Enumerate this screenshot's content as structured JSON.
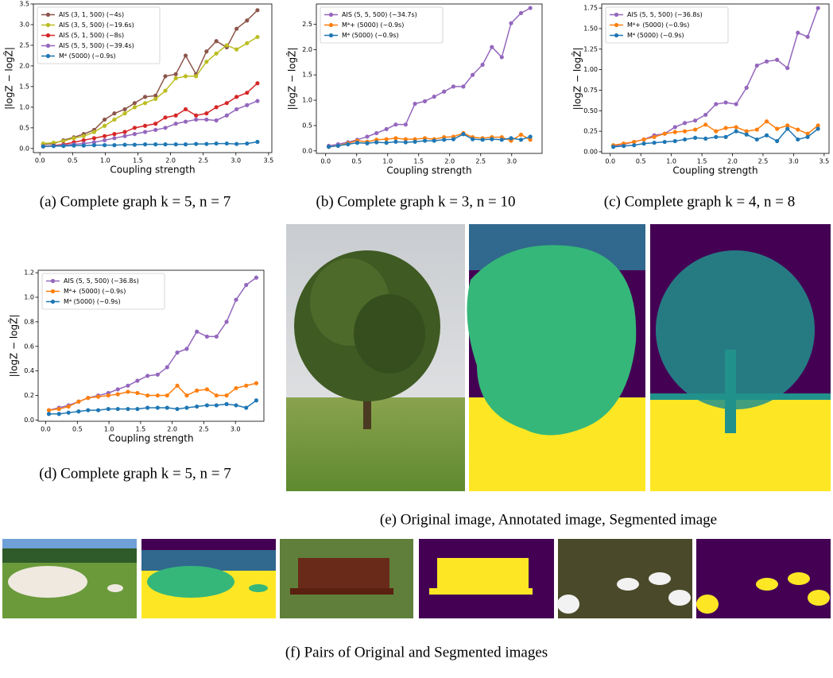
{
  "chart_data": [
    {
      "type": "line",
      "caption": "(a) Complete graph k = 5, n = 7",
      "x_label": "Coupling strength",
      "y_label": "|logZ − logẐ|",
      "x": [
        0.05,
        0.21,
        0.36,
        0.52,
        0.67,
        0.83,
        0.99,
        1.14,
        1.3,
        1.45,
        1.61,
        1.77,
        1.92,
        2.08,
        2.23,
        2.39,
        2.55,
        2.7,
        2.86,
        3.01,
        3.17,
        3.33
      ],
      "xlim": [
        -0.1,
        3.55
      ],
      "xticks": [
        {
          "value": 0,
          "label": "0.0"
        },
        0.5,
        {
          "value": 1,
          "label": "1.0"
        },
        1.5,
        {
          "value": 2,
          "label": "2.0"
        },
        2.5,
        {
          "value": 3,
          "label": "3.0"
        },
        3.5
      ],
      "ylim": [
        -0.1,
        3.5
      ],
      "yticks": [
        {
          "value": 0,
          "label": "0.0"
        },
        0.5,
        {
          "value": 1,
          "label": "1.0"
        },
        1.5,
        {
          "value": 2,
          "label": "2.0"
        },
        2.5,
        {
          "value": 3,
          "label": "3.0"
        },
        3.5
      ],
      "legend": "upper left",
      "series": [
        {
          "name": "AIS (3, 1, 500) (~4s)",
          "color": "#8c564b",
          "values": [
            0.1,
            0.12,
            0.2,
            0.27,
            0.35,
            0.45,
            0.7,
            0.85,
            0.95,
            1.1,
            1.25,
            1.28,
            1.75,
            1.8,
            2.25,
            1.8,
            2.35,
            2.6,
            2.45,
            2.9,
            3.1,
            3.35
          ]
        },
        {
          "name": "AIS (3, 5, 500) (~19.6s)",
          "color": "#bcbd22",
          "values": [
            0.12,
            0.14,
            0.18,
            0.25,
            0.3,
            0.4,
            0.55,
            0.7,
            0.85,
            1.0,
            1.1,
            1.2,
            1.4,
            1.7,
            1.75,
            1.75,
            2.1,
            2.3,
            2.5,
            2.4,
            2.55,
            2.7
          ]
        },
        {
          "name": "AIS (5, 1, 500) (~8s)",
          "color": "#d62728",
          "values": [
            0.05,
            0.07,
            0.1,
            0.15,
            0.2,
            0.25,
            0.3,
            0.35,
            0.4,
            0.5,
            0.55,
            0.6,
            0.75,
            0.8,
            0.95,
            0.8,
            0.85,
            1.0,
            1.1,
            1.25,
            1.35,
            1.58
          ]
        },
        {
          "name": "AIS (5, 5, 500) (~39.4s)",
          "color": "#9467bd",
          "values": [
            0.05,
            0.06,
            0.08,
            0.1,
            0.12,
            0.15,
            0.2,
            0.25,
            0.3,
            0.35,
            0.4,
            0.45,
            0.5,
            0.6,
            0.65,
            0.7,
            0.7,
            0.68,
            0.8,
            0.95,
            1.05,
            1.15
          ]
        },
        {
          "name": "M⁴ (5000) (~0.9s)",
          "color": "#1f77b4",
          "values": [
            0.05,
            0.06,
            0.06,
            0.07,
            0.07,
            0.08,
            0.08,
            0.08,
            0.09,
            0.09,
            0.1,
            0.1,
            0.1,
            0.1,
            0.1,
            0.11,
            0.11,
            0.12,
            0.12,
            0.11,
            0.12,
            0.16
          ]
        }
      ]
    },
    {
      "type": "line",
      "caption": "(b) Complete graph k = 3, n = 10",
      "x_label": "Coupling strength",
      "y_label": "|logZ − logẐ|",
      "x": [
        0.05,
        0.2,
        0.36,
        0.51,
        0.67,
        0.82,
        0.98,
        1.13,
        1.29,
        1.44,
        1.6,
        1.75,
        1.91,
        2.06,
        2.22,
        2.37,
        2.53,
        2.68,
        2.84,
        2.99,
        3.15,
        3.3
      ],
      "xlim": [
        -0.15,
        3.49
      ],
      "xticks": [
        {
          "value": 0,
          "label": "0.0"
        },
        0.5,
        {
          "value": 1,
          "label": "1.0"
        },
        1.5,
        {
          "value": 2,
          "label": "2.0"
        },
        2.5,
        {
          "value": 3,
          "label": "3.0"
        }
      ],
      "ylim": [
        -0.05,
        2.9
      ],
      "yticks": [
        {
          "value": 0,
          "label": "0.0"
        },
        0.5,
        {
          "value": 1,
          "label": "1.0"
        },
        1.5,
        {
          "value": 2,
          "label": "2.0"
        },
        2.5
      ],
      "legend": "upper left",
      "series": [
        {
          "name": "AIS (5, 5, 500) (~34.7s)",
          "color": "#9467bd",
          "values": [
            0.1,
            0.13,
            0.17,
            0.22,
            0.28,
            0.35,
            0.43,
            0.52,
            0.52,
            0.93,
            0.98,
            1.07,
            1.17,
            1.27,
            1.27,
            1.5,
            1.7,
            2.05,
            1.85,
            2.52,
            2.72,
            2.82
          ]
        },
        {
          "name": "M⁴+ (5000) (~0.9s)",
          "color": "#ff7f0e",
          "values": [
            0.08,
            0.1,
            0.15,
            0.2,
            0.18,
            0.22,
            0.23,
            0.25,
            0.23,
            0.23,
            0.25,
            0.23,
            0.27,
            0.28,
            0.35,
            0.27,
            0.25,
            0.27,
            0.27,
            0.2,
            0.32,
            0.22
          ]
        },
        {
          "name": "M⁴ (5000) (~0.9s)",
          "color": "#1f77b4",
          "values": [
            0.08,
            0.1,
            0.13,
            0.16,
            0.15,
            0.17,
            0.16,
            0.18,
            0.17,
            0.18,
            0.2,
            0.2,
            0.22,
            0.23,
            0.33,
            0.23,
            0.22,
            0.23,
            0.22,
            0.25,
            0.22,
            0.28
          ]
        }
      ]
    },
    {
      "type": "line",
      "caption": "(c) Complete graph k = 4, n = 8",
      "x_label": "Coupling strength",
      "y_label": "|logZ − logẐ|",
      "x": [
        0.05,
        0.22,
        0.39,
        0.55,
        0.72,
        0.89,
        1.06,
        1.22,
        1.39,
        1.56,
        1.73,
        1.89,
        2.06,
        2.23,
        2.4,
        2.56,
        2.73,
        2.9,
        3.07,
        3.23,
        3.4
      ],
      "xlim": [
        -0.14,
        3.58
      ],
      "xticks": [
        {
          "value": 0,
          "label": "0.0"
        },
        0.5,
        {
          "value": 1,
          "label": "1.0"
        },
        1.5,
        {
          "value": 2,
          "label": "2.0"
        },
        2.5,
        {
          "value": 3,
          "label": "3.0"
        },
        3.5
      ],
      "ylim": [
        -0.02,
        1.8
      ],
      "yticks": [
        {
          "value": 0,
          "label": "0.00"
        },
        0.25,
        {
          "value": 0.5,
          "label": "0.50"
        },
        0.75,
        {
          "value": 1,
          "label": "1.00"
        },
        1.25,
        {
          "value": 1.5,
          "label": "1.50"
        },
        1.75
      ],
      "legend": "upper left",
      "series": [
        {
          "name": "AIS (5, 5, 500) (~36.8s)",
          "color": "#9467bd",
          "values": [
            0.07,
            0.09,
            0.12,
            0.15,
            0.2,
            0.22,
            0.3,
            0.35,
            0.38,
            0.45,
            0.58,
            0.6,
            0.58,
            0.78,
            1.05,
            1.1,
            1.12,
            1.02,
            1.45,
            1.4,
            1.75
          ]
        },
        {
          "name": "M⁴+ (5000) (~0.9s)",
          "color": "#ff7f0e",
          "values": [
            0.08,
            0.1,
            0.12,
            0.15,
            0.18,
            0.22,
            0.24,
            0.25,
            0.27,
            0.33,
            0.25,
            0.29,
            0.3,
            0.25,
            0.27,
            0.37,
            0.28,
            0.32,
            0.27,
            0.22,
            0.32
          ]
        },
        {
          "name": "M⁴ (5000) (~0.9s)",
          "color": "#1f77b4",
          "values": [
            0.06,
            0.07,
            0.08,
            0.1,
            0.11,
            0.12,
            0.13,
            0.15,
            0.17,
            0.16,
            0.18,
            0.18,
            0.25,
            0.21,
            0.15,
            0.2,
            0.13,
            0.28,
            0.15,
            0.18,
            0.28
          ]
        }
      ]
    },
    {
      "type": "line",
      "caption": "(d) Complete graph k = 5, n = 7",
      "x_label": "Coupling strength",
      "y_label": "|logZ − logẐ|",
      "x": [
        0.05,
        0.21,
        0.36,
        0.52,
        0.67,
        0.83,
        0.99,
        1.14,
        1.3,
        1.45,
        1.61,
        1.77,
        1.92,
        2.08,
        2.23,
        2.39,
        2.55,
        2.7,
        2.86,
        3.01,
        3.17,
        3.33
      ],
      "xlim": [
        -0.12,
        3.45
      ],
      "xticks": [
        {
          "value": 0,
          "label": "0.0"
        },
        0.5,
        {
          "value": 1,
          "label": "1.0"
        },
        1.5,
        {
          "value": 2,
          "label": "2.0"
        },
        2.5,
        {
          "value": 3,
          "label": "3.0"
        }
      ],
      "ylim": [
        -0.01,
        1.22
      ],
      "yticks": [
        {
          "value": 0,
          "label": "0.0"
        },
        0.2,
        0.4,
        0.6,
        0.8,
        {
          "value": 1,
          "label": "1.0"
        },
        1.2
      ],
      "legend": "upper left",
      "series": [
        {
          "name": "AIS (5, 5, 500) (~36.8s)",
          "color": "#9467bd",
          "values": [
            0.08,
            0.1,
            0.12,
            0.15,
            0.18,
            0.2,
            0.22,
            0.25,
            0.28,
            0.32,
            0.36,
            0.37,
            0.43,
            0.55,
            0.58,
            0.72,
            0.68,
            0.68,
            0.8,
            0.98,
            1.1,
            1.16
          ]
        },
        {
          "name": "M⁴+ (5000) (~0.9s)",
          "color": "#ff7f0e",
          "values": [
            0.08,
            0.09,
            0.11,
            0.15,
            0.18,
            0.19,
            0.2,
            0.21,
            0.23,
            0.22,
            0.2,
            0.2,
            0.2,
            0.28,
            0.2,
            0.24,
            0.25,
            0.2,
            0.2,
            0.26,
            0.28,
            0.3
          ]
        },
        {
          "name": "M⁴ (5000) (~0.9s)",
          "color": "#1f77b4",
          "values": [
            0.05,
            0.05,
            0.06,
            0.07,
            0.08,
            0.08,
            0.09,
            0.09,
            0.09,
            0.09,
            0.1,
            0.1,
            0.1,
            0.09,
            0.1,
            0.11,
            0.12,
            0.12,
            0.13,
            0.12,
            0.1,
            0.16
          ]
        }
      ]
    }
  ],
  "figure_e": {
    "caption": "(e) Original image, Annotated image, Segmented image"
  },
  "figure_f": {
    "caption": "(f) Pairs of Original and Segmented images"
  }
}
